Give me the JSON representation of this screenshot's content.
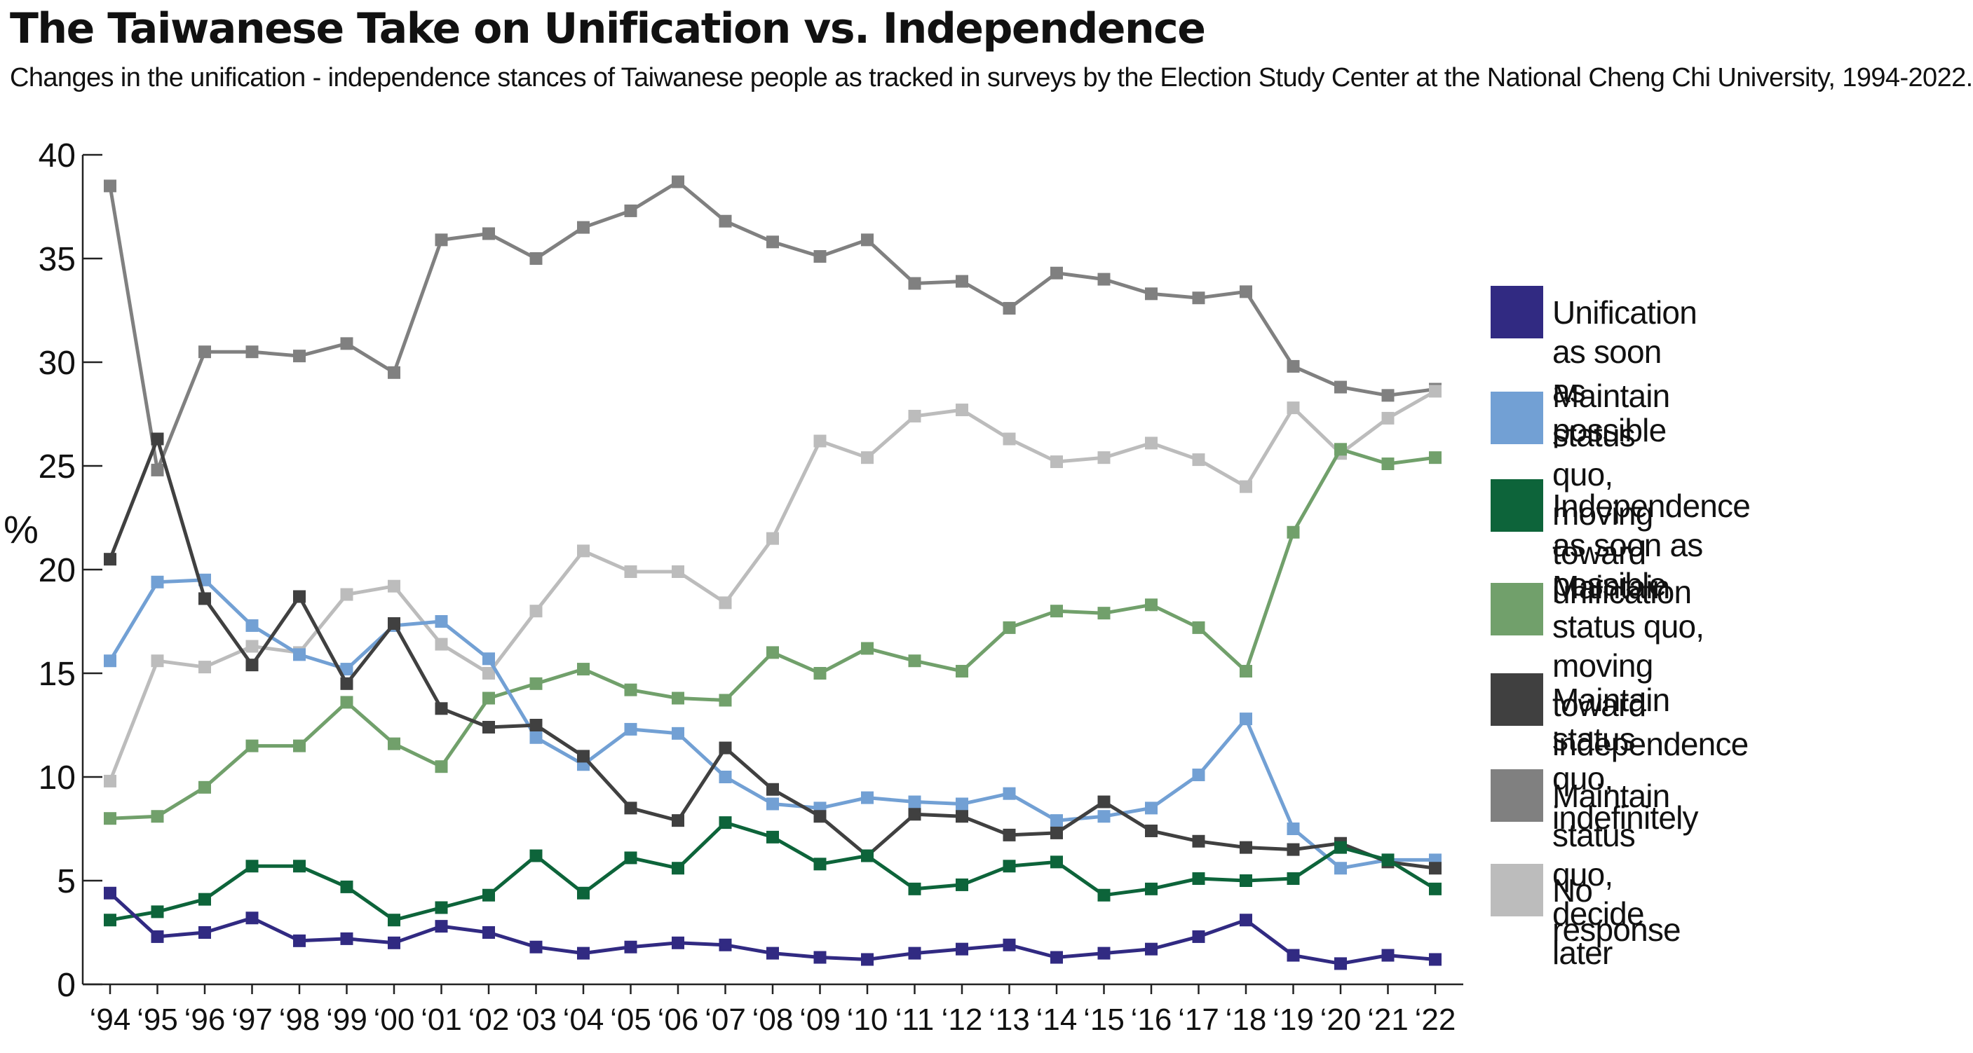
{
  "chart_data": {
    "type": "line",
    "title": "The Taiwanese Take on Unification vs. Independence",
    "subtitle": "Changes in the unification - independence stances of Taiwanese people as tracked in surveys by the Election Study Center at the National Cheng Chi University, 1994-2022.",
    "xlabel": "",
    "ylabel": "%",
    "ylim": [
      0,
      40
    ],
    "yticks": [
      0,
      5,
      10,
      15,
      20,
      25,
      30,
      35,
      40
    ],
    "categories": [
      "‘94",
      "‘95",
      "‘96",
      "‘97",
      "‘98",
      "‘99",
      "‘00",
      "‘01",
      "‘02",
      "‘03",
      "‘04",
      "‘05",
      "‘06",
      "‘07",
      "‘08",
      "‘09",
      "‘10",
      "‘11",
      "‘12",
      "‘13",
      "‘14",
      "‘15",
      "‘16",
      "‘17",
      "‘18",
      "‘19",
      "‘20",
      "‘21",
      "‘22"
    ],
    "legend_position": "right",
    "series": [
      {
        "name": "Maintain status quo, decide later",
        "color": "#808080",
        "values": [
          38.5,
          24.8,
          30.5,
          30.5,
          30.3,
          30.9,
          29.5,
          35.9,
          36.2,
          35.0,
          36.5,
          37.3,
          38.7,
          36.8,
          35.8,
          35.1,
          35.9,
          33.8,
          33.9,
          32.6,
          34.3,
          34.0,
          33.3,
          33.1,
          33.4,
          29.8,
          28.8,
          28.4,
          28.7
        ]
      },
      {
        "name": "No response",
        "color": "#bcbcbc",
        "values": [
          9.8,
          15.6,
          15.3,
          16.3,
          16.0,
          18.8,
          19.2,
          16.4,
          15.0,
          18.0,
          20.9,
          19.9,
          19.9,
          18.4,
          21.5,
          26.2,
          25.4,
          27.4,
          27.7,
          26.3,
          25.2,
          25.4,
          26.1,
          25.3,
          24.0,
          27.8,
          25.6,
          27.3,
          28.6
        ]
      },
      {
        "name": "Maintain status quo, moving toward independence",
        "color": "#71a06b",
        "values": [
          8.0,
          8.1,
          9.5,
          11.5,
          11.5,
          13.6,
          11.6,
          10.5,
          13.8,
          14.5,
          15.2,
          14.2,
          13.8,
          13.7,
          16.0,
          15.0,
          16.2,
          15.6,
          15.1,
          17.2,
          18.0,
          17.9,
          18.3,
          17.2,
          15.1,
          21.8,
          25.8,
          25.1,
          25.4
        ]
      },
      {
        "name": "Maintain status quo, moving toward unification",
        "color": "#72a0d4",
        "values": [
          15.6,
          19.4,
          19.5,
          17.3,
          15.9,
          15.2,
          17.3,
          17.5,
          15.7,
          11.9,
          10.6,
          12.3,
          12.1,
          10.0,
          8.7,
          8.5,
          9.0,
          8.8,
          8.7,
          9.2,
          7.9,
          8.1,
          8.5,
          10.1,
          12.8,
          7.5,
          5.6,
          6.0,
          6.0
        ]
      },
      {
        "name": "Maintain status quo, indefinitely",
        "color": "#404040",
        "values": [
          20.5,
          26.3,
          18.6,
          15.4,
          18.7,
          14.5,
          17.4,
          13.3,
          12.4,
          12.5,
          11.0,
          8.5,
          7.9,
          11.4,
          9.4,
          8.1,
          6.2,
          8.2,
          8.1,
          7.2,
          7.3,
          8.8,
          7.4,
          6.9,
          6.6,
          6.5,
          6.8,
          5.9,
          5.6
        ]
      },
      {
        "name": "Independence as soon as possible",
        "color": "#0d643a",
        "values": [
          3.1,
          3.5,
          4.1,
          5.7,
          5.7,
          4.7,
          3.1,
          3.7,
          4.3,
          6.2,
          4.4,
          6.1,
          5.6,
          7.8,
          7.1,
          5.8,
          6.2,
          4.6,
          4.8,
          5.7,
          5.9,
          4.3,
          4.6,
          5.1,
          5.0,
          5.1,
          6.6,
          6.0,
          4.6
        ]
      },
      {
        "name": "Unification as soon as possible",
        "color": "#312a82",
        "values": [
          4.4,
          2.3,
          2.5,
          3.2,
          2.1,
          2.2,
          2.0,
          2.8,
          2.5,
          1.8,
          1.5,
          1.8,
          2.0,
          1.9,
          1.5,
          1.3,
          1.2,
          1.5,
          1.7,
          1.9,
          1.3,
          1.5,
          1.7,
          2.3,
          3.1,
          1.4,
          1.0,
          1.4,
          1.2
        ]
      }
    ]
  },
  "legend": {
    "items": [
      {
        "label": "Unification as soon as possible",
        "color": "#312a82"
      },
      {
        "label": "Maintain status quo,\nmoving toward unification",
        "color": "#72a0d4"
      },
      {
        "label": "Independence as soon as possible",
        "color": "#0d643a"
      },
      {
        "label": "Maintain status quo,\nmoving toward independence",
        "color": "#71a06b"
      },
      {
        "label": "Maintain status quo, indefinitely",
        "color": "#404040"
      },
      {
        "label": "Maintain status quo, decide later",
        "color": "#808080"
      },
      {
        "label": "No response",
        "color": "#bcbcbc"
      }
    ]
  }
}
